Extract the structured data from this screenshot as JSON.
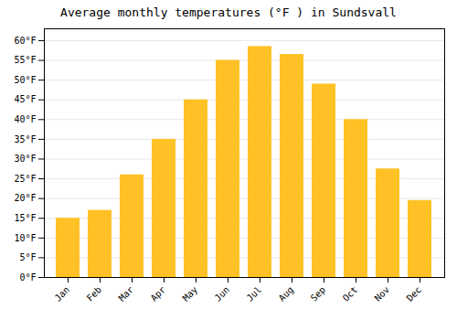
{
  "chart_data": {
    "type": "bar",
    "title": "Average monthly temperatures (°F ) in Sundsvall",
    "categories": [
      "Jan",
      "Feb",
      "Mar",
      "Apr",
      "May",
      "Jun",
      "Jul",
      "Aug",
      "Sep",
      "Oct",
      "Nov",
      "Dec"
    ],
    "values": [
      15,
      17,
      26,
      35,
      45,
      55,
      58.5,
      56.5,
      49,
      40,
      27.5,
      19.5
    ],
    "color": "#FFC125",
    "ylim": [
      0,
      63
    ],
    "yticks": [
      {
        "value": 0,
        "label": "0°F"
      },
      {
        "value": 5,
        "label": "5°F"
      },
      {
        "value": 10,
        "label": "10°F"
      },
      {
        "value": 15,
        "label": "15°F"
      },
      {
        "value": 20,
        "label": "20°F"
      },
      {
        "value": 25,
        "label": "25°F"
      },
      {
        "value": 30,
        "label": "30°F"
      },
      {
        "value": 35,
        "label": "35°F"
      },
      {
        "value": 40,
        "label": "40°F"
      },
      {
        "value": 45,
        "label": "45°F"
      },
      {
        "value": 50,
        "label": "50°F"
      },
      {
        "value": 55,
        "label": "55°F"
      },
      {
        "value": 60,
        "label": "60°F"
      }
    ],
    "grid": true
  }
}
